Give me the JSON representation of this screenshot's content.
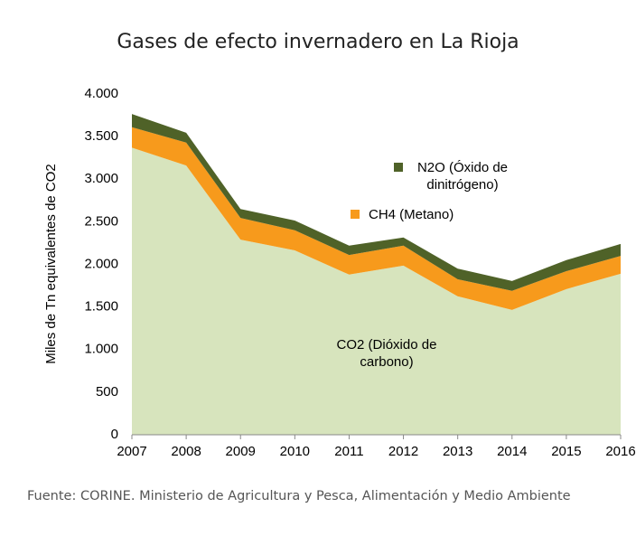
{
  "chart_data": {
    "type": "area",
    "stacked": true,
    "title": "Gases de efecto invernadero en La Rioja",
    "y_label": "Miles de Tn equivalentes de CO2",
    "source": "Fuente: CORINE. Ministerio de Agricultura y Pesca, Alimentación y Medio Ambiente",
    "categories": [
      "2007",
      "2008",
      "2009",
      "2010",
      "2011",
      "2012",
      "2013",
      "2014",
      "2015",
      "2016"
    ],
    "series": [
      {
        "name": "CO2 (Dióxido de carbono)",
        "color": "#d7e4bd",
        "values": [
          3370,
          3160,
          2290,
          2165,
          1880,
          1985,
          1625,
          1465,
          1710,
          1890
        ]
      },
      {
        "name": "CH4 (Metano)",
        "color": "#f79a1c",
        "values": [
          240,
          270,
          255,
          235,
          230,
          235,
          200,
          225,
          210,
          210
        ]
      },
      {
        "name": "N2O (Óxido de dinitrógeno)",
        "color": "#4f6228",
        "values": [
          155,
          115,
          105,
          115,
          110,
          95,
          125,
          115,
          130,
          140
        ]
      }
    ],
    "ylim": [
      0,
      4000
    ],
    "yticks": [
      0,
      500,
      {
        "value": 1000,
        "label": "1.000"
      },
      {
        "value": 1500,
        "label": "1.500"
      },
      {
        "value": 2000,
        "label": "2.000"
      },
      {
        "value": 2500,
        "label": "2.500"
      },
      {
        "value": 3000,
        "label": "3.000"
      },
      {
        "value": 3500,
        "label": "3.500"
      },
      {
        "value": 4000,
        "label": "4.000"
      }
    ]
  }
}
